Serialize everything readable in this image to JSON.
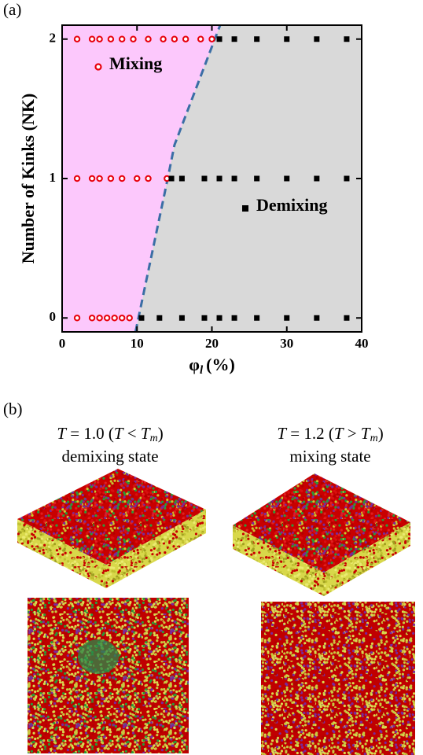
{
  "panel_labels": [
    "(a)",
    "(b)"
  ],
  "chart_data": {
    "type": "scatter",
    "xlabel": {
      "symbol": "φ",
      "subscript": "l",
      "unit": "(%)"
    },
    "ylabel": "Number of Kinks (NK)",
    "xlim": [
      0,
      40
    ],
    "ylim": [
      -0.1,
      2.1
    ],
    "xticks": [
      0,
      10,
      20,
      30,
      40
    ],
    "yticks": [
      0,
      1,
      2
    ],
    "region_colors": [
      "#fcc8fc",
      "#d9d9d9"
    ],
    "series": [
      {
        "name": "Mixing",
        "color": "#e8000b",
        "marker": "circle",
        "x": [
          2,
          4,
          5,
          6.5,
          8,
          9.5,
          11.5,
          13.5,
          15,
          16.5,
          18.5,
          20,
          2,
          4,
          5,
          6.5,
          8,
          10,
          11.5,
          14,
          2,
          4,
          5,
          6,
          7,
          8,
          9
        ],
        "values": [
          2,
          2,
          2,
          2,
          2,
          2,
          2,
          2,
          2,
          2,
          2,
          2,
          1,
          1,
          1,
          1,
          1,
          1,
          1,
          1,
          0,
          0,
          0,
          0,
          0,
          0,
          0
        ]
      },
      {
        "name": "Demixing",
        "color": "#000000",
        "marker": "square",
        "x": [
          21,
          23,
          26,
          30,
          34,
          38,
          14.6,
          16,
          19,
          21,
          23,
          26,
          30,
          34,
          38,
          10.6,
          13,
          16,
          19,
          21,
          23,
          26,
          30,
          34,
          38
        ],
        "values": [
          2,
          2,
          2,
          2,
          2,
          2,
          1,
          1,
          1,
          1,
          1,
          1,
          1,
          1,
          1,
          0,
          0,
          0,
          0,
          0,
          0,
          0,
          0,
          0,
          0
        ]
      }
    ],
    "boundary": {
      "color": "#3a6ea5",
      "x": [
        9.8,
        14.1,
        15,
        21.1
      ],
      "values": [
        -0.1,
        1,
        1.24,
        2.1
      ]
    }
  },
  "simulations": [
    {
      "caption": [
        "T",
        " = 1.0 (",
        "T",
        " < ",
        "T",
        "m",
        ")"
      ],
      "state": "demixing state"
    },
    {
      "caption": [
        "T",
        " = 1.2 (",
        "T",
        " > ",
        "T",
        "m",
        ")"
      ],
      "state": "mixing state"
    }
  ]
}
